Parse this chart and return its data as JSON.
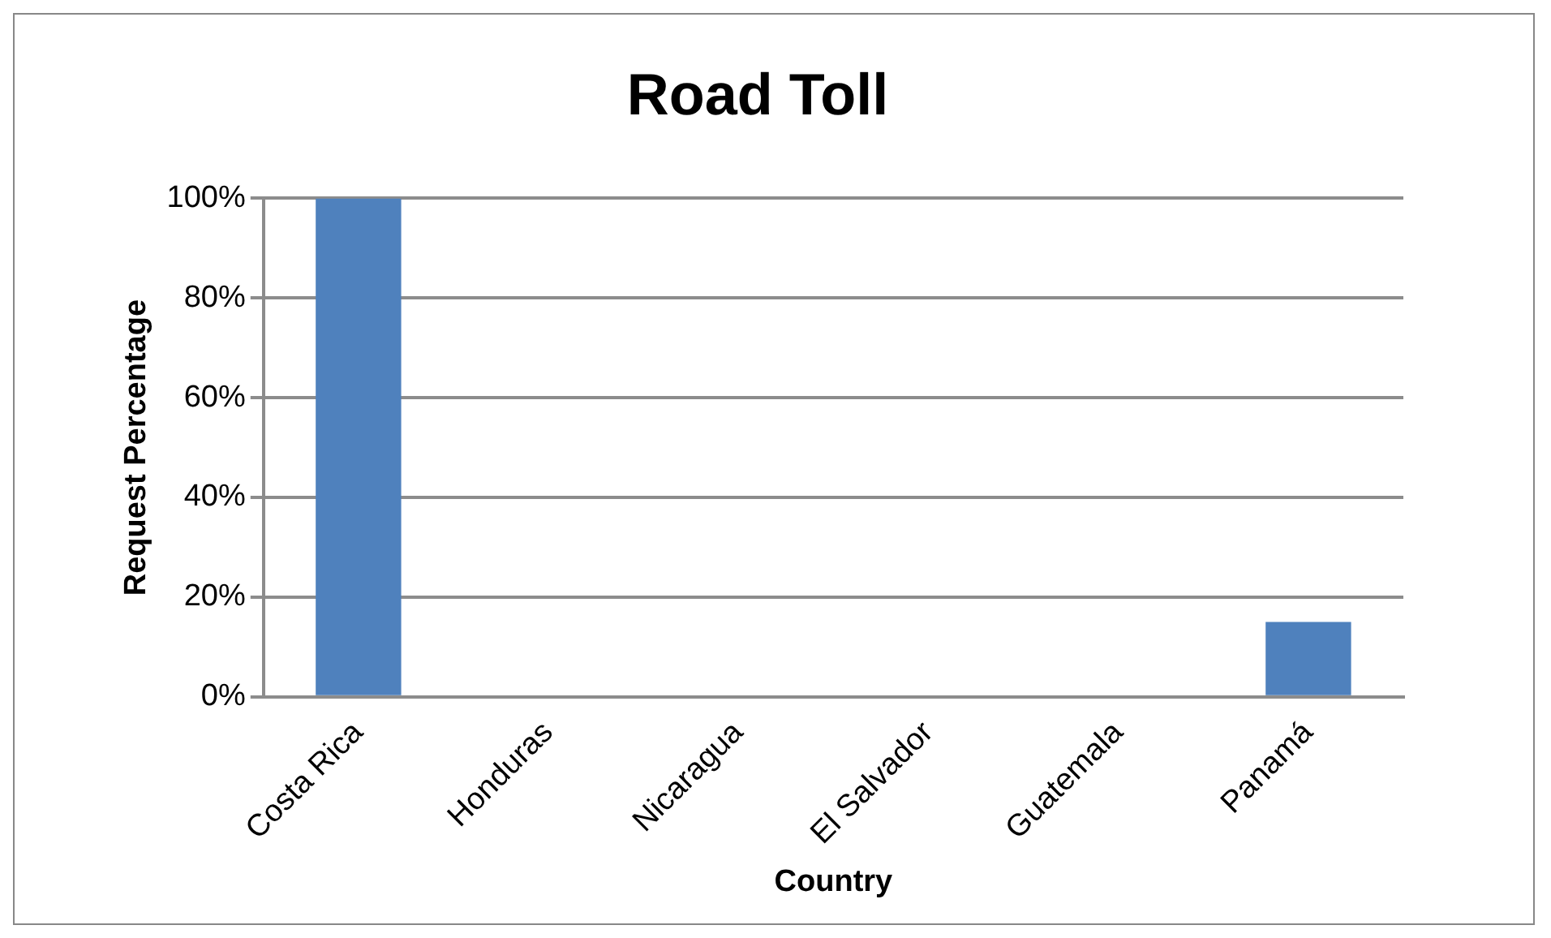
{
  "chart_data": {
    "type": "bar",
    "title": "Road Toll",
    "xlabel": "Country",
    "ylabel": "Request Percentage",
    "categories": [
      "Costa Rica",
      "Honduras",
      "Nicaragua",
      "El Salvador",
      "Guatemala",
      "Panamá"
    ],
    "values": [
      100,
      0,
      0,
      0,
      0,
      15
    ],
    "color": "#4f81bd",
    "ylim": [
      0,
      100
    ],
    "yticks": [
      {
        "value": 0,
        "label": "0%"
      },
      {
        "value": 20,
        "label": "20%"
      },
      {
        "value": 40,
        "label": "40%"
      },
      {
        "value": 60,
        "label": "60%"
      },
      {
        "value": 80,
        "label": "80%"
      },
      {
        "value": 100,
        "label": "100%"
      }
    ],
    "grid": "y",
    "legend": false
  }
}
